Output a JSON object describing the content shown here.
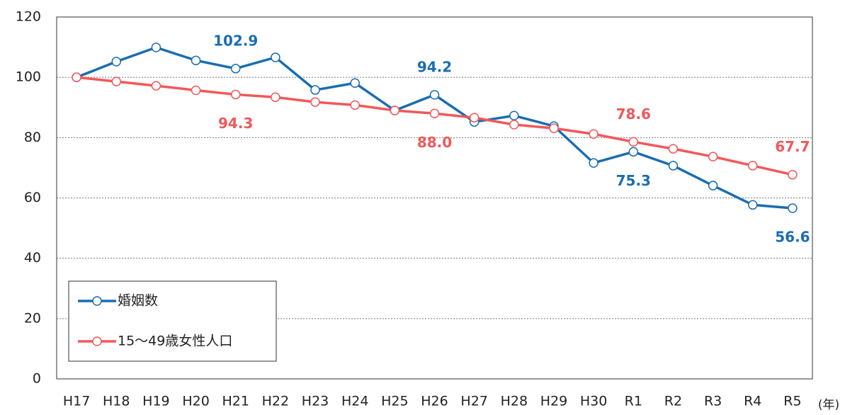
{
  "chart_data": {
    "type": "line",
    "x_label": "(年)",
    "categories": [
      "H17",
      "H18",
      "H19",
      "H20",
      "H21",
      "H22",
      "H23",
      "H24",
      "H25",
      "H26",
      "H27",
      "H28",
      "H29",
      "H30",
      "R1",
      "R2",
      "R3",
      "R4",
      "R5"
    ],
    "series": [
      {
        "name": "婚姻数",
        "color": "#1a6db0",
        "values": [
          100,
          105.2,
          109.9,
          105.6,
          102.9,
          106.6,
          95.8,
          98.1,
          89.0,
          94.2,
          85.2,
          87.3,
          83.8,
          71.6,
          75.3,
          70.7,
          64.1,
          57.7,
          56.6
        ],
        "value_labels": [
          null,
          null,
          null,
          null,
          "102.9",
          null,
          null,
          null,
          null,
          "94.2",
          null,
          null,
          null,
          null,
          "75.3",
          null,
          null,
          null,
          "56.6"
        ]
      },
      {
        "name": "15～49歳女性人口",
        "color": "#f2585a",
        "values": [
          100,
          98.6,
          97.2,
          95.7,
          94.3,
          93.4,
          91.8,
          90.8,
          89.0,
          88.0,
          86.6,
          84.3,
          83.1,
          81.2,
          78.6,
          76.3,
          73.7,
          70.7,
          67.7
        ],
        "value_labels": [
          null,
          null,
          null,
          null,
          "94.3",
          null,
          null,
          null,
          null,
          "88.0",
          null,
          null,
          null,
          null,
          "78.6",
          null,
          null,
          null,
          "67.7"
        ]
      }
    ],
    "ylim": [
      0,
      120
    ],
    "yticks": [
      0,
      20,
      40,
      60,
      80,
      100,
      120
    ],
    "grid": true
  }
}
